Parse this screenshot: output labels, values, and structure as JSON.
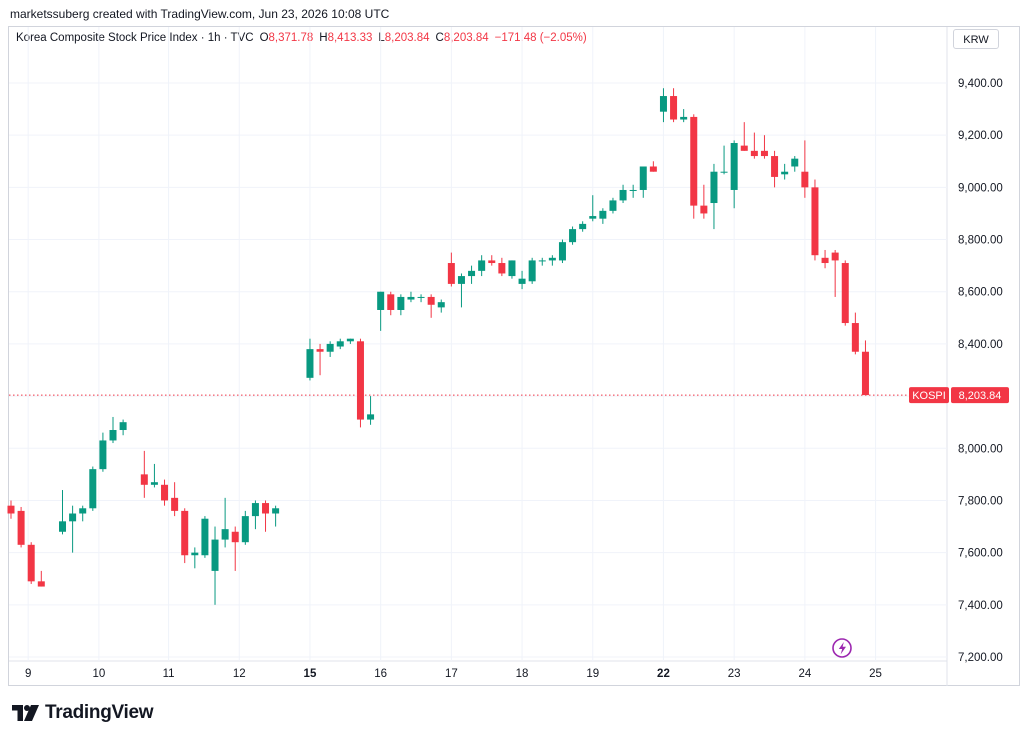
{
  "credit": "marketssuberg created with TradingView.com, Jun 23, 2026 10:08 UTC",
  "legend": {
    "symbol": "Korea Composite Stock Price Index · 1h · TVC",
    "o_label": "O",
    "o_value": "8,371.78",
    "h_label": "H",
    "h_value": "8,413.33",
    "l_label": "L",
    "l_value": "8,203.84",
    "c_label": "C",
    "c_value": "8,203.84",
    "change": "−171.48 (−2.05%)"
  },
  "currency": "KRW",
  "brand": "TradingView",
  "colors": {
    "up": "#089981",
    "down": "#f23645",
    "grid": "#f0f3fa",
    "text": "#131722",
    "event": "#9c27b0"
  },
  "event_icon": "lightning-bolt-icon",
  "chart_data": {
    "type": "candlestick",
    "interval": "1h",
    "ylim": [
      7200,
      9500
    ],
    "y_ticks": [
      7200,
      7400,
      7600,
      7800,
      8000,
      8200,
      8400,
      8600,
      8800,
      9000,
      9200,
      9400
    ],
    "y_tick_labels": [
      "7,200.00",
      "7,400.00",
      "7,600.00",
      "7,800.00",
      "8,000.00",
      "8,200.00",
      "8,400.00",
      "8,600.00",
      "8,800.00",
      "9,000.00",
      "9,200.00",
      "9,400.00"
    ],
    "x_ticks": [
      {
        "label": "9",
        "pos": 1.7,
        "bold": false
      },
      {
        "label": "10",
        "pos": 8.7,
        "bold": false
      },
      {
        "label": "11",
        "pos": 15.6,
        "bold": false
      },
      {
        "label": "12",
        "pos": 22.6,
        "bold": false
      },
      {
        "label": "15",
        "pos": 29.6,
        "bold": true
      },
      {
        "label": "16",
        "pos": 36.6,
        "bold": false
      },
      {
        "label": "17",
        "pos": 43.6,
        "bold": false
      },
      {
        "label": "18",
        "pos": 50.6,
        "bold": false
      },
      {
        "label": "19",
        "pos": 57.6,
        "bold": false
      },
      {
        "label": "22",
        "pos": 64.6,
        "bold": true
      },
      {
        "label": "23",
        "pos": 71.6,
        "bold": false
      },
      {
        "label": "24",
        "pos": 78.6,
        "bold": false
      },
      {
        "label": "25",
        "pos": 85.6,
        "bold": false
      }
    ],
    "last_price": {
      "label": "KOSPI",
      "value": 8203.84,
      "text": "8,203.84"
    },
    "candles": [
      [
        7780,
        7800,
        7730,
        7750
      ],
      [
        7760,
        7775,
        7620,
        7630
      ],
      [
        7630,
        7640,
        7480,
        7490
      ],
      [
        7490,
        7530,
        7470,
        7470
      ],
      [
        7680,
        7840,
        7670,
        7720
      ],
      [
        7720,
        7780,
        7600,
        7750
      ],
      [
        7750,
        7780,
        7720,
        7770
      ],
      [
        7770,
        7930,
        7760,
        7920
      ],
      [
        7920,
        8060,
        7910,
        8030
      ],
      [
        8030,
        8120,
        8020,
        8070
      ],
      [
        8070,
        8110,
        8050,
        8100
      ],
      [
        7900,
        7990,
        7810,
        7860
      ],
      [
        7860,
        7940,
        7850,
        7870
      ],
      [
        7860,
        7880,
        7780,
        7800
      ],
      [
        7810,
        7870,
        7740,
        7760
      ],
      [
        7760,
        7770,
        7560,
        7590
      ],
      [
        7590,
        7620,
        7540,
        7600
      ],
      [
        7590,
        7740,
        7580,
        7730
      ],
      [
        7530,
        7700,
        7400,
        7650
      ],
      [
        7650,
        7810,
        7620,
        7690
      ],
      [
        7680,
        7700,
        7530,
        7640
      ],
      [
        7640,
        7760,
        7630,
        7740
      ],
      [
        7740,
        7800,
        7690,
        7790
      ],
      [
        7790,
        7800,
        7680,
        7750
      ],
      [
        7750,
        7780,
        7700,
        7770
      ],
      [
        8270,
        8420,
        8260,
        8380
      ],
      [
        8380,
        8400,
        8280,
        8370
      ],
      [
        8370,
        8410,
        8350,
        8400
      ],
      [
        8390,
        8420,
        8380,
        8410
      ],
      [
        8410,
        8420,
        8400,
        8420
      ],
      [
        8410,
        8420,
        8080,
        8110
      ],
      [
        8110,
        8200,
        8090,
        8130
      ],
      [
        8530,
        8600,
        8450,
        8600
      ],
      [
        8590,
        8600,
        8510,
        8530
      ],
      [
        8530,
        8590,
        8510,
        8580
      ],
      [
        8570,
        8600,
        8560,
        8580
      ],
      [
        8580,
        8590,
        8560,
        8580
      ],
      [
        8580,
        8590,
        8500,
        8550
      ],
      [
        8540,
        8570,
        8520,
        8560
      ],
      [
        8710,
        8750,
        8620,
        8630
      ],
      [
        8630,
        8670,
        8540,
        8660
      ],
      [
        8660,
        8700,
        8630,
        8680
      ],
      [
        8680,
        8740,
        8660,
        8720
      ],
      [
        8720,
        8740,
        8700,
        8710
      ],
      [
        8710,
        8730,
        8660,
        8670
      ],
      [
        8660,
        8720,
        8650,
        8720
      ],
      [
        8630,
        8680,
        8610,
        8650
      ],
      [
        8640,
        8730,
        8630,
        8720
      ],
      [
        8720,
        8730,
        8700,
        8720
      ],
      [
        8720,
        8740,
        8700,
        8730
      ],
      [
        8720,
        8800,
        8710,
        8790
      ],
      [
        8790,
        8850,
        8780,
        8840
      ],
      [
        8840,
        8870,
        8830,
        8860
      ],
      [
        8880,
        8970,
        8870,
        8890
      ],
      [
        8880,
        8920,
        8860,
        8910
      ],
      [
        8910,
        8960,
        8900,
        8950
      ],
      [
        8950,
        9010,
        8940,
        8990
      ],
      [
        8990,
        9010,
        8960,
        8990
      ],
      [
        8990,
        9080,
        8960,
        9080
      ],
      [
        9080,
        9100,
        9060,
        9060
      ],
      [
        9290,
        9380,
        9250,
        9350
      ],
      [
        9350,
        9380,
        9250,
        9260
      ],
      [
        9260,
        9300,
        9250,
        9270
      ],
      [
        9270,
        9280,
        8880,
        8930
      ],
      [
        8930,
        9010,
        8880,
        8900
      ],
      [
        8940,
        9090,
        8840,
        9060
      ],
      [
        9060,
        9160,
        9050,
        9060
      ],
      [
        8990,
        9180,
        8920,
        9170
      ],
      [
        9160,
        9250,
        9140,
        9140
      ],
      [
        9140,
        9210,
        9110,
        9120
      ],
      [
        9140,
        9200,
        9110,
        9120
      ],
      [
        9120,
        9140,
        9000,
        9040
      ],
      [
        9050,
        9090,
        9030,
        9060
      ],
      [
        9080,
        9120,
        9060,
        9110
      ],
      [
        9060,
        9180,
        8960,
        9000
      ],
      [
        9000,
        9030,
        8720,
        8740
      ],
      [
        8730,
        8760,
        8690,
        8710
      ],
      [
        8750,
        8760,
        8580,
        8720
      ],
      [
        8710,
        8720,
        8470,
        8480
      ],
      [
        8480,
        8520,
        8360,
        8370
      ],
      [
        8370,
        8413.33,
        8203.84,
        8203.84
      ]
    ],
    "candle_x": [
      0.0,
      1.0,
      2.0,
      3.0,
      5.1,
      6.1,
      7.1,
      8.1,
      9.1,
      10.1,
      11.1,
      13.2,
      14.2,
      15.2,
      16.2,
      17.2,
      18.2,
      19.2,
      20.2,
      21.2,
      22.2,
      23.2,
      24.2,
      25.2,
      26.2,
      29.6,
      30.6,
      31.6,
      32.6,
      33.6,
      34.6,
      35.6,
      36.6,
      37.6,
      38.6,
      39.6,
      40.6,
      41.6,
      42.6,
      43.6,
      44.6,
      45.6,
      46.6,
      47.6,
      48.6,
      49.6,
      50.6,
      51.6,
      52.6,
      53.6,
      54.6,
      55.6,
      56.6,
      57.6,
      58.6,
      59.6,
      60.6,
      61.6,
      62.6,
      63.6,
      64.6,
      65.6,
      66.6,
      67.6,
      68.6,
      69.6,
      70.6,
      71.6,
      72.6,
      73.6,
      74.6,
      75.6,
      76.6,
      77.6,
      78.6,
      79.6,
      80.6,
      81.6,
      82.6,
      83.6,
      84.6
    ]
  }
}
